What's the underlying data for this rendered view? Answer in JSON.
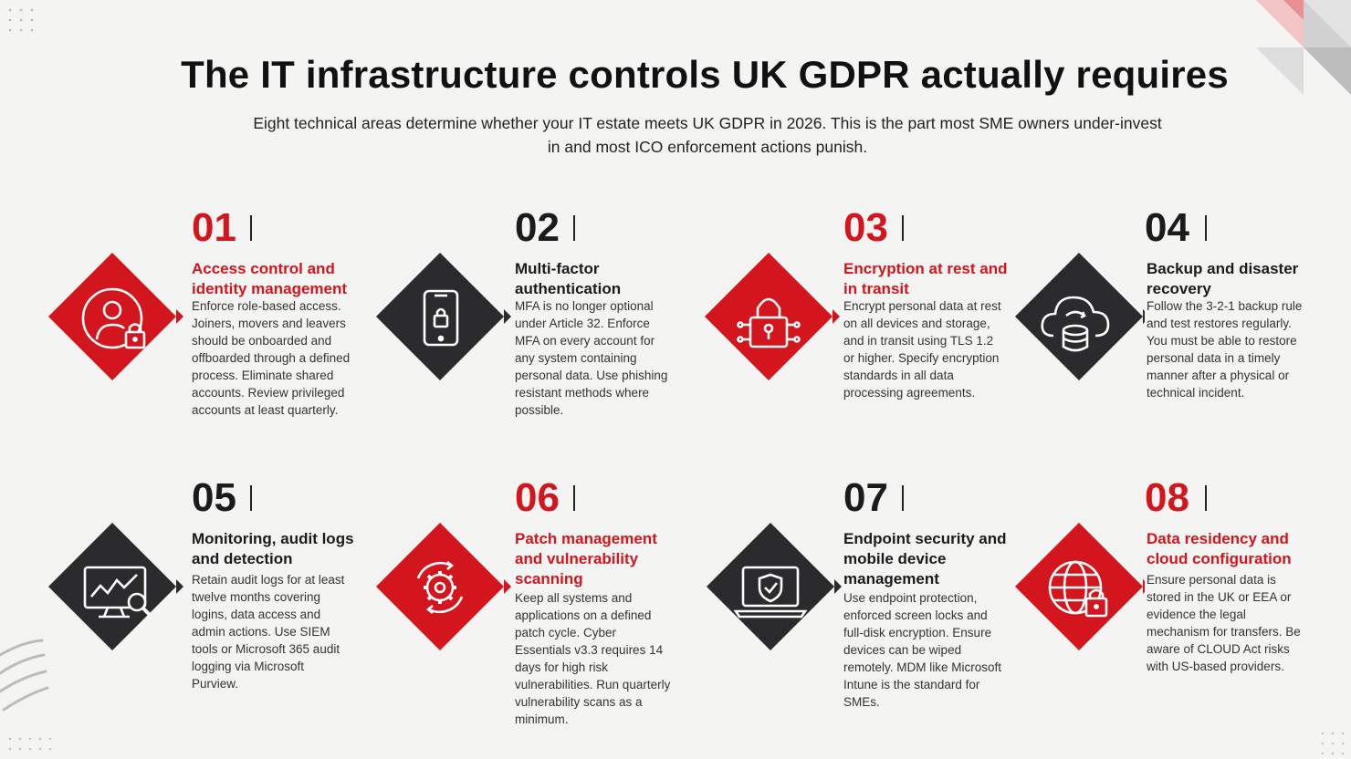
{
  "title": "The IT infrastructure controls UK GDPR actually requires",
  "subtitle": "Eight technical areas determine whether your IT estate meets UK GDPR in 2026. This is the part most SME owners under-invest in and most ICO enforcement actions punish.",
  "colors": {
    "accent_red": "#d3151d",
    "dark": "#2b2b2d",
    "background": "#f4f4f2"
  },
  "controls": [
    {
      "number": "01",
      "heading": "Access control and identity management",
      "body": "Enforce role-based access. Joiners, movers and leavers should be onboarded and offboarded through a defined process. Eliminate shared accounts. Review privileged accounts at least quarterly.",
      "color": "red",
      "icon": "user-lock-icon"
    },
    {
      "number": "02",
      "heading": "Multi-factor authentication",
      "body": "MFA is no longer optional under Article 32. Enforce MFA on every account for any system containing personal data. Use phishing resistant methods where possible.",
      "color": "dark",
      "icon": "mobile-lock-icon"
    },
    {
      "number": "03",
      "heading": "Encryption at rest and in transit",
      "body": "Encrypt personal data at rest on all devices and storage, and in transit using TLS 1.2 or higher. Specify encryption standards in all data processing agreements.",
      "color": "red",
      "icon": "padlock-circuit-icon"
    },
    {
      "number": "04",
      "heading": "Backup and disaster recovery",
      "body": "Follow the 3-2-1 backup rule and test restores regularly. You must be able to restore personal data in a timely manner after a physical or technical incident.",
      "color": "dark",
      "icon": "cloud-database-icon"
    },
    {
      "number": "05",
      "heading": "Monitoring, audit logs and detection",
      "body": "Retain audit logs for at least twelve months covering logins, data access and admin actions. Use SIEM tools or Microsoft 365 audit logging via Microsoft Purview.",
      "color": "dark",
      "icon": "monitor-analytics-icon"
    },
    {
      "number": "06",
      "heading": "Patch management and vulnerability scanning",
      "body": "Keep all systems and applications on a defined patch cycle. Cyber Essentials v3.3 requires 14 days for high risk vulnerabilities. Run quarterly vulnerability scans as a minimum.",
      "color": "red",
      "icon": "gear-cycle-icon"
    },
    {
      "number": "07",
      "heading": "Endpoint security and mobile device management",
      "body": "Use endpoint protection, enforced screen locks and full-disk encryption. Ensure devices can be wiped remotely. MDM like Microsoft Intune is the standard for SMEs.",
      "color": "dark",
      "icon": "laptop-shield-icon"
    },
    {
      "number": "08",
      "heading": "Data residency and cloud configuration",
      "body": "Ensure personal data is stored in the UK or EEA or evidence the legal mechanism for transfers. Be aware of CLOUD Act risks with US-based providers.",
      "color": "red",
      "icon": "globe-lock-icon"
    }
  ]
}
